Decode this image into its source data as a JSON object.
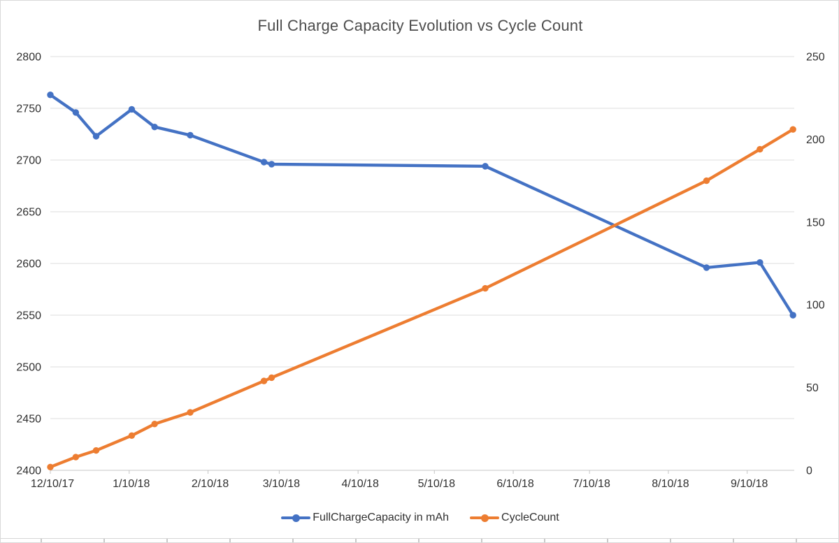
{
  "chart_data": {
    "type": "line",
    "title": "Full Charge Capacity Evolution vs Cycle Count",
    "grid": true,
    "legend_position": "bottom",
    "x_axis": {
      "tick_labels": [
        "12/10/17",
        "1/10/18",
        "2/10/18",
        "3/10/18",
        "4/10/18",
        "5/10/18",
        "6/10/18",
        "7/10/18",
        "8/10/18",
        "9/10/18"
      ],
      "tick_days": [
        0,
        31,
        62,
        90,
        121,
        151,
        182,
        212,
        243,
        274
      ],
      "domain_days": [
        0,
        292.5
      ]
    },
    "left_axis": {
      "min": 2400,
      "max": 2800,
      "step": 50,
      "ticks": [
        2400,
        2450,
        2500,
        2550,
        2600,
        2650,
        2700,
        2750,
        2800
      ]
    },
    "right_axis": {
      "min": 0,
      "max": 250,
      "step": 50,
      "ticks": [
        0,
        50,
        100,
        150,
        200,
        250
      ]
    },
    "series": [
      {
        "name": "FullChargeCapacity in mAh",
        "color": "#4472C4",
        "axis": "left",
        "x_dates": [
          "12/10/17",
          "12/20/17",
          "12/28/17",
          "1/11/18",
          "1/20/18",
          "2/3/18",
          "3/4/18",
          "3/7/18",
          "5/30/18",
          "8/25/18",
          "9/15/18",
          "9/28/18"
        ],
        "x_days": [
          0,
          10,
          18,
          32,
          41,
          55,
          84,
          87,
          171,
          258,
          279,
          292
        ],
        "values": [
          2763,
          2746,
          2723,
          2749,
          2732,
          2724,
          2698,
          2696,
          2694,
          2596,
          2601,
          2550
        ]
      },
      {
        "name": "CycleCount",
        "color": "#ED7D31",
        "axis": "right",
        "x_dates": [
          "12/10/17",
          "12/20/17",
          "12/28/17",
          "1/11/18",
          "1/20/18",
          "2/3/18",
          "3/4/18",
          "3/7/18",
          "5/30/18",
          "8/25/18",
          "9/15/18",
          "9/28/18"
        ],
        "x_days": [
          0,
          10,
          18,
          32,
          41,
          55,
          84,
          87,
          171,
          258,
          279,
          292
        ],
        "values": [
          2,
          8,
          12,
          21,
          28,
          35,
          54,
          56,
          110,
          175,
          194,
          206
        ]
      }
    ],
    "palette": {
      "gridline": "#dcdcdc",
      "axis_line": "#c4c4c4",
      "tick_label": "#303030",
      "title": "#4d4d4d",
      "background": "#ffffff"
    }
  }
}
